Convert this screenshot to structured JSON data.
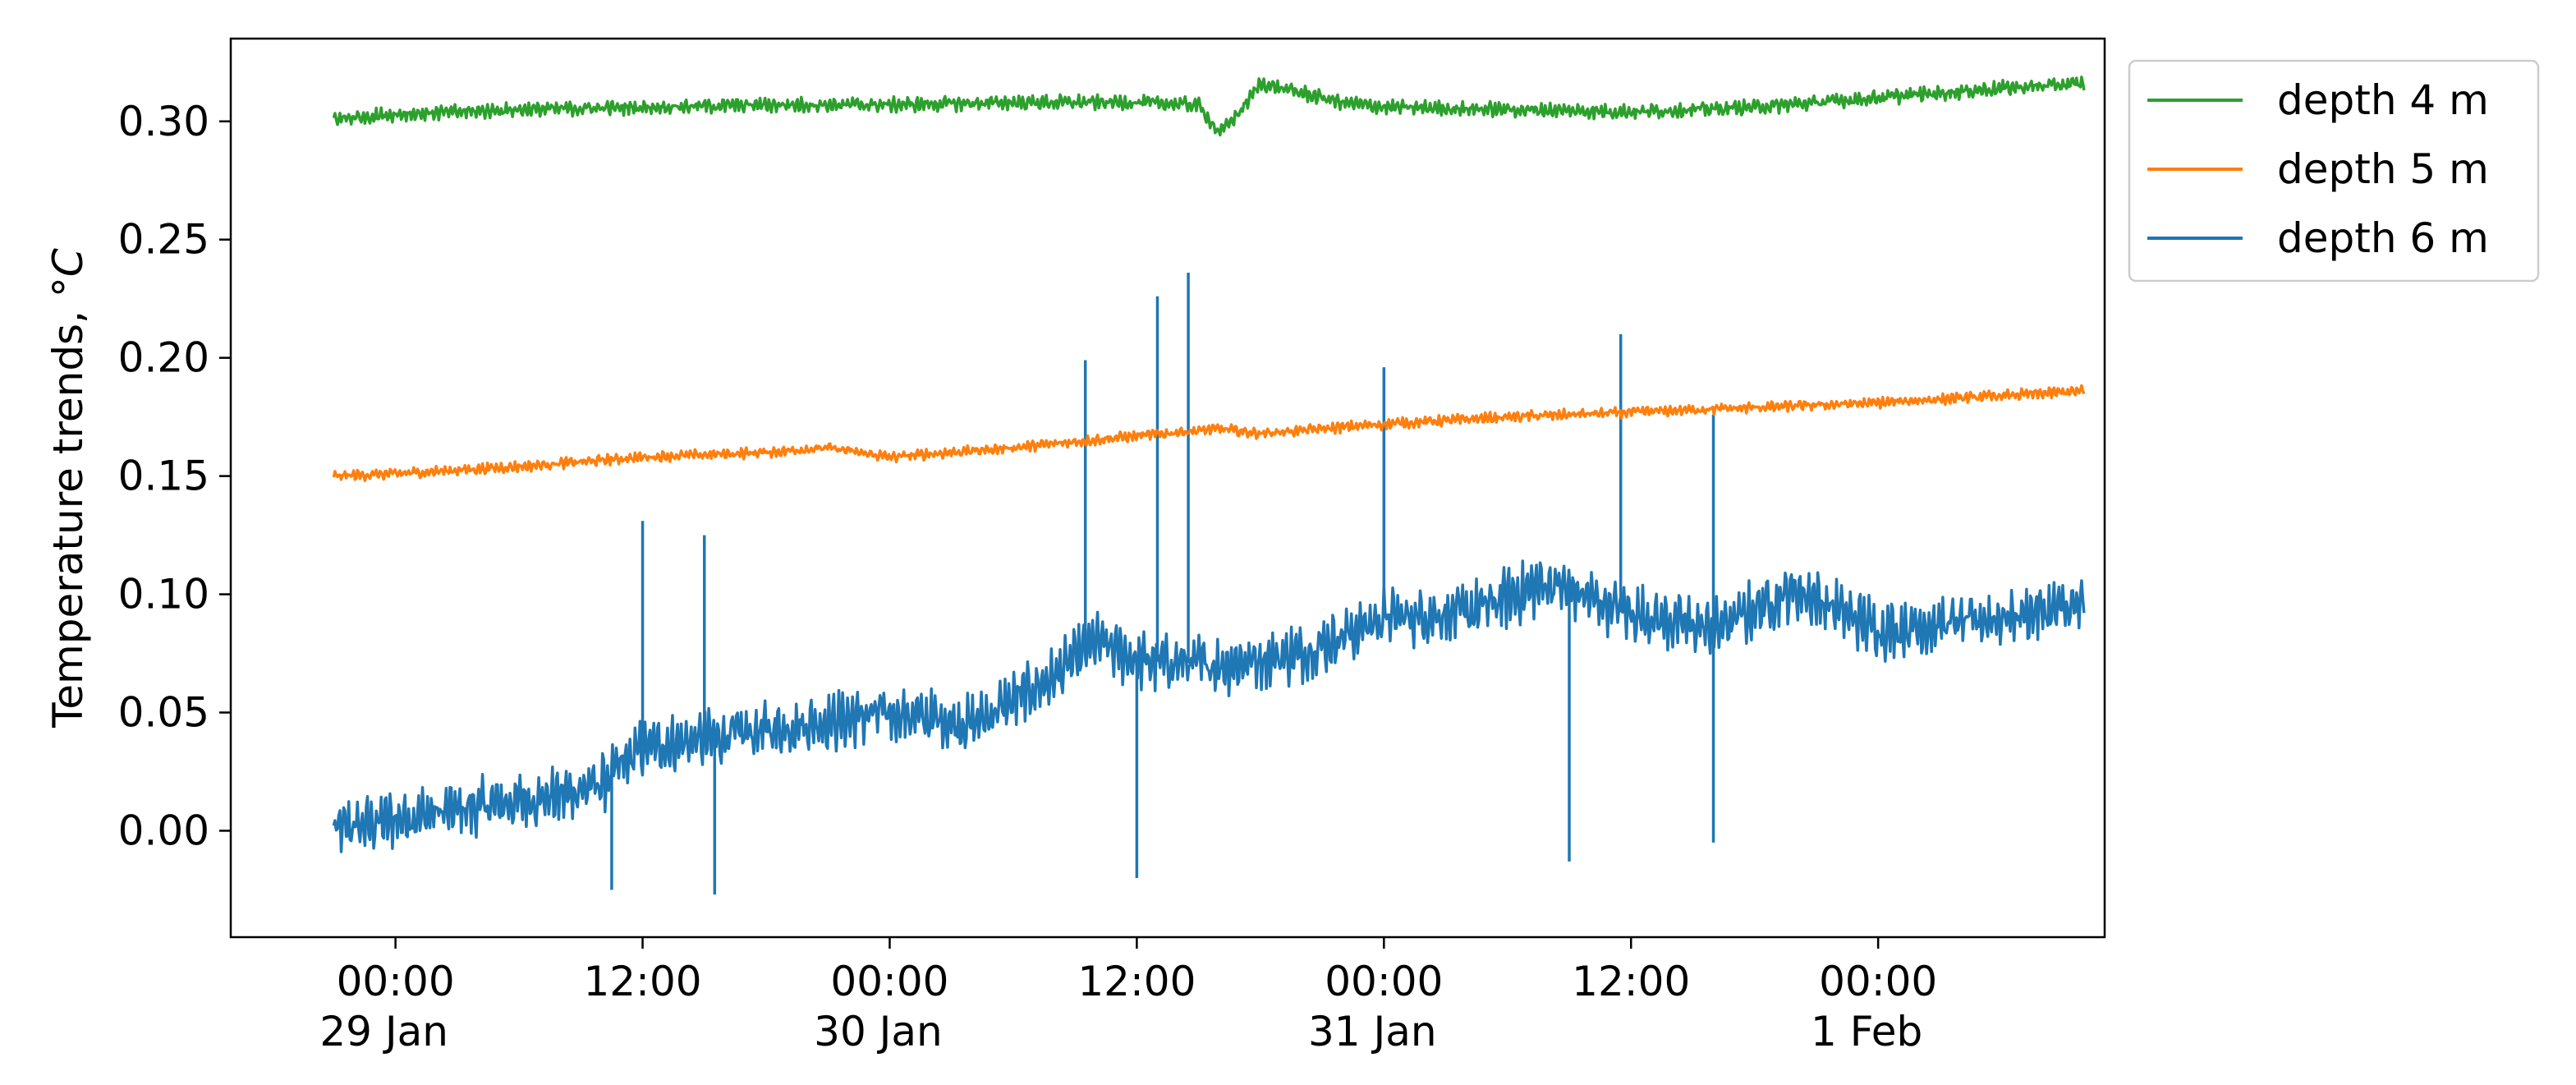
{
  "chart_data": {
    "type": "line",
    "title": "",
    "xlabel": "",
    "ylabel": "Temperature trends, ",
    "ylabel_unit": "°C",
    "ylim": [
      -0.045,
      0.335
    ],
    "yticks": [
      {
        "value": 0.0,
        "label": "0.00"
      },
      {
        "value": 0.05,
        "label": "0.05"
      },
      {
        "value": 0.1,
        "label": "0.10"
      },
      {
        "value": 0.15,
        "label": "0.15"
      },
      {
        "value": 0.2,
        "label": "0.20"
      },
      {
        "value": 0.25,
        "label": "0.25"
      },
      {
        "value": 0.3,
        "label": "0.30"
      }
    ],
    "xlim": [
      "28 Jan 16:00",
      "1 Feb 11:00"
    ],
    "xticks": [
      {
        "time": "29 Jan 00:00",
        "label": "00:00",
        "sublabel": "29 Jan"
      },
      {
        "time": "29 Jan 12:00",
        "label": "12:00",
        "sublabel": ""
      },
      {
        "time": "30 Jan 00:00",
        "label": "00:00",
        "sublabel": "30 Jan"
      },
      {
        "time": "30 Jan 12:00",
        "label": "12:00",
        "sublabel": ""
      },
      {
        "time": "31 Jan 00:00",
        "label": "00:00",
        "sublabel": "31 Jan"
      },
      {
        "time": "31 Jan 12:00",
        "label": "12:00",
        "sublabel": ""
      },
      {
        "time": "1 Feb 00:00",
        "label": "00:00",
        "sublabel": "1 Feb"
      }
    ],
    "grid": false,
    "legend_position": "outside-top-right",
    "series": [
      {
        "name": "depth 4 m",
        "color": "#2ca02c",
        "points": [
          [
            "28 Jan 21:00",
            0.301
          ],
          [
            "29 Jan 00:00",
            0.303
          ],
          [
            "29 Jan 06:00",
            0.305
          ],
          [
            "29 Jan 12:00",
            0.306
          ],
          [
            "29 Jan 18:00",
            0.307
          ],
          [
            "30 Jan 00:00",
            0.307
          ],
          [
            "30 Jan 06:00",
            0.308
          ],
          [
            "30 Jan 12:00",
            0.308
          ],
          [
            "30 Jan 15:00",
            0.307
          ],
          [
            "30 Jan 16:00",
            0.295
          ],
          [
            "30 Jan 17:00",
            0.304
          ],
          [
            "30 Jan 18:00",
            0.316
          ],
          [
            "30 Jan 20:00",
            0.312
          ],
          [
            "30 Jan 22:00",
            0.308
          ],
          [
            "31 Jan 00:00",
            0.306
          ],
          [
            "31 Jan 06:00",
            0.305
          ],
          [
            "31 Jan 12:00",
            0.304
          ],
          [
            "31 Jan 18:00",
            0.306
          ],
          [
            "1 Feb 00:00",
            0.31
          ],
          [
            "1 Feb 06:00",
            0.314
          ],
          [
            "1 Feb 10:00",
            0.316
          ]
        ]
      },
      {
        "name": "depth 5 m",
        "color": "#ff7f0e",
        "points": [
          [
            "28 Jan 21:00",
            0.15
          ],
          [
            "29 Jan 00:00",
            0.151
          ],
          [
            "29 Jan 06:00",
            0.154
          ],
          [
            "29 Jan 12:00",
            0.158
          ],
          [
            "29 Jan 18:00",
            0.16
          ],
          [
            "29 Jan 21:00",
            0.162
          ],
          [
            "30 Jan 00:00",
            0.158
          ],
          [
            "30 Jan 06:00",
            0.162
          ],
          [
            "30 Jan 12:00",
            0.167
          ],
          [
            "30 Jan 16:00",
            0.17
          ],
          [
            "30 Jan 18:00",
            0.168
          ],
          [
            "31 Jan 00:00",
            0.172
          ],
          [
            "31 Jan 06:00",
            0.175
          ],
          [
            "31 Jan 12:00",
            0.177
          ],
          [
            "31 Jan 18:00",
            0.179
          ],
          [
            "1 Feb 00:00",
            0.181
          ],
          [
            "1 Feb 06:00",
            0.184
          ],
          [
            "1 Feb 10:00",
            0.186
          ]
        ]
      },
      {
        "name": "depth 6 m",
        "color": "#1f77b4",
        "points": [
          [
            "28 Jan 21:00",
            0.0
          ],
          [
            "29 Jan 00:00",
            0.005
          ],
          [
            "29 Jan 04:00",
            0.01
          ],
          [
            "29 Jan 08:00",
            0.015
          ],
          [
            "29 Jan 10:00",
            0.02
          ],
          [
            "29 Jan 12:00",
            0.035
          ],
          [
            "29 Jan 16:00",
            0.04
          ],
          [
            "29 Jan 20:00",
            0.045
          ],
          [
            "30 Jan 00:00",
            0.05
          ],
          [
            "30 Jan 04:00",
            0.045
          ],
          [
            "30 Jan 06:00",
            0.055
          ],
          [
            "30 Jan 08:00",
            0.065
          ],
          [
            "30 Jan 10:00",
            0.08
          ],
          [
            "30 Jan 12:00",
            0.072
          ],
          [
            "30 Jan 16:00",
            0.07
          ],
          [
            "30 Jan 20:00",
            0.075
          ],
          [
            "31 Jan 00:00",
            0.09
          ],
          [
            "31 Jan 04:00",
            0.092
          ],
          [
            "31 Jan 08:00",
            0.105
          ],
          [
            "31 Jan 12:00",
            0.092
          ],
          [
            "31 Jan 16:00",
            0.085
          ],
          [
            "31 Jan 20:00",
            0.102
          ],
          [
            "1 Feb 00:00",
            0.085
          ],
          [
            "1 Feb 04:00",
            0.088
          ],
          [
            "1 Feb 10:00",
            0.095
          ]
        ],
        "spikes": [
          [
            "29 Jan 12:00",
            0.131
          ],
          [
            "29 Jan 15:00",
            0.125
          ],
          [
            "29 Jan 10:30",
            -0.025
          ],
          [
            "29 Jan 15:30",
            -0.027
          ],
          [
            "30 Jan 09:30",
            0.199
          ],
          [
            "30 Jan 12:00",
            -0.02
          ],
          [
            "30 Jan 13:00",
            0.226
          ],
          [
            "30 Jan 14:30",
            0.236
          ],
          [
            "31 Jan 00:00",
            0.196
          ],
          [
            "31 Jan 11:30",
            0.21
          ],
          [
            "31 Jan 09:00",
            -0.013
          ],
          [
            "31 Jan 16:00",
            0.176
          ],
          [
            "31 Jan 16:00",
            -0.005
          ]
        ]
      }
    ]
  }
}
